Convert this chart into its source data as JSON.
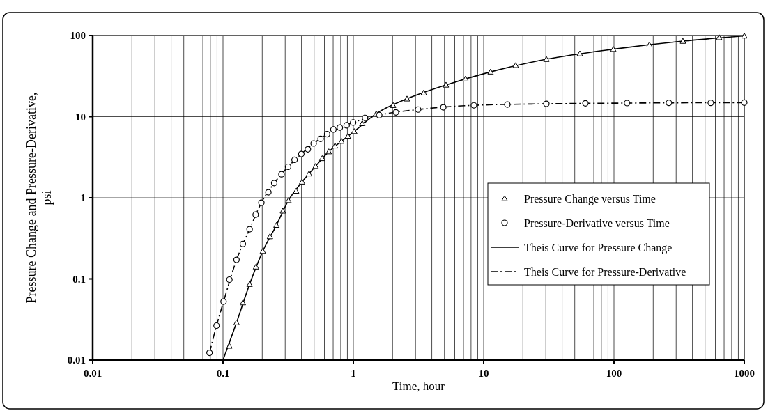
{
  "chart_data": {
    "type": "scatter",
    "xlabel": "Time, hour",
    "ylabel": "Pressure Change and Pressure-Derivative,\npsi",
    "log": "xy",
    "grid": true,
    "legend": "right",
    "xlim": [
      0.01,
      1000
    ],
    "xticks": [
      0.01,
      0.1,
      1,
      10,
      100,
      1000
    ],
    "ylim": [
      0.01,
      100
    ],
    "yticks": [
      0.01,
      0.1,
      1,
      10,
      100
    ],
    "series": [
      {
        "name": "Pressure Change versus Time",
        "marker": "triangle",
        "color": "#000000",
        "x": [
          0.112,
          0.127,
          0.142,
          0.16,
          0.179,
          0.202,
          0.229,
          0.257,
          0.288,
          0.318,
          0.364,
          0.404,
          0.457,
          0.513,
          0.577,
          0.648,
          0.723,
          0.811,
          0.91,
          1.016,
          1.17,
          1.5,
          2.02,
          2.58,
          3.47,
          5.14,
          7.26,
          11.3,
          17.6,
          30.3,
          54.7,
          98.8,
          187,
          338,
          641,
          1000
        ],
        "values": [
          0.0149,
          0.029,
          0.051,
          0.086,
          0.141,
          0.22,
          0.333,
          0.46,
          0.69,
          0.93,
          1.21,
          1.57,
          1.98,
          2.45,
          3.06,
          3.71,
          4.37,
          4.99,
          5.77,
          6.59,
          8.24,
          10.9,
          13.8,
          16.6,
          19.7,
          24.6,
          29.3,
          35.7,
          42.9,
          51,
          59.8,
          67.8,
          76.9,
          85.3,
          94.6,
          99
        ]
      },
      {
        "name": "Pressure-Derivative versus Time",
        "marker": "circle",
        "color": "#000000",
        "x": [
          0.0788,
          0.0892,
          0.101,
          0.112,
          0.127,
          0.142,
          0.16,
          0.178,
          0.197,
          0.223,
          0.247,
          0.281,
          0.316,
          0.354,
          0.399,
          0.448,
          0.496,
          0.561,
          0.629,
          0.703,
          0.788,
          0.888,
          0.996,
          1.23,
          1.58,
          2.12,
          3.14,
          4.9,
          8.41,
          15.2,
          30.3,
          60.4,
          126,
          264,
          553,
          1000
        ],
        "values": [
          0.0123,
          0.0266,
          0.0525,
          0.098,
          0.172,
          0.27,
          0.41,
          0.62,
          0.87,
          1.17,
          1.52,
          1.95,
          2.41,
          2.94,
          3.47,
          3.96,
          4.67,
          5.33,
          6.09,
          6.95,
          7.33,
          7.82,
          8.46,
          9.66,
          10.45,
          11.3,
          12.25,
          13.05,
          13.8,
          14.1,
          14.4,
          14.6,
          14.7,
          14.8,
          14.8,
          14.9
        ]
      },
      {
        "name": "Theis Curve for Pressure Change",
        "type": "line",
        "line_style": "solid",
        "color": "#000000",
        "x": [
          0.1,
          0.127,
          0.16,
          0.202,
          0.257,
          0.318,
          0.404,
          0.513,
          0.648,
          0.811,
          1.016,
          1.5,
          2.58,
          5.14,
          11.3,
          30.3,
          98.8,
          338,
          1000
        ],
        "values": [
          0.01,
          0.029,
          0.086,
          0.22,
          0.46,
          0.93,
          1.57,
          2.45,
          3.71,
          4.99,
          6.59,
          10.9,
          16.6,
          24.6,
          35.7,
          51,
          67.8,
          85.3,
          99
        ]
      },
      {
        "name": "Theis Curve for Pressure-Derivative",
        "type": "line",
        "line_style": "dashed",
        "color": "#000000",
        "x": [
          0.0788,
          0.0892,
          0.101,
          0.127,
          0.16,
          0.197,
          0.247,
          0.316,
          0.399,
          0.496,
          0.629,
          0.788,
          0.996,
          1.58,
          3.14,
          8.41,
          30.3,
          126,
          1000
        ],
        "values": [
          0.0123,
          0.0266,
          0.0525,
          0.172,
          0.41,
          0.87,
          1.52,
          2.41,
          3.47,
          4.67,
          6.09,
          7.33,
          8.46,
          10.45,
          12.25,
          13.8,
          14.4,
          14.7,
          14.9
        ]
      }
    ]
  }
}
